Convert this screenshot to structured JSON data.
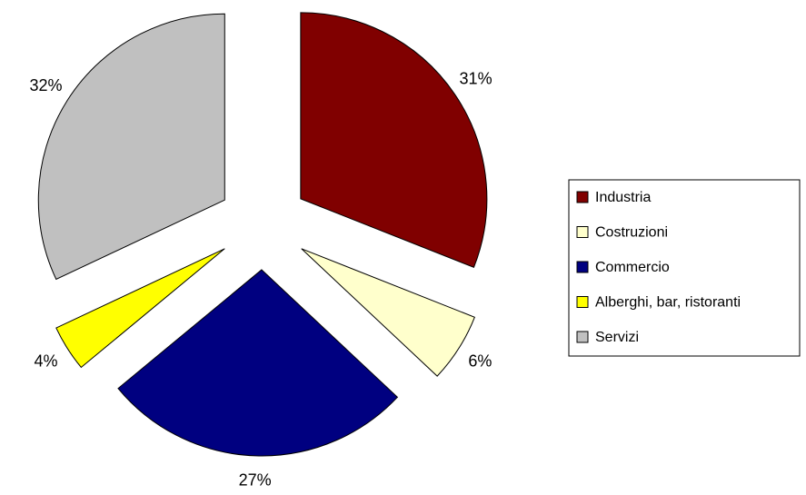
{
  "chart_data": {
    "type": "pie",
    "categories": [
      "Industria",
      "Costruzioni",
      "Commercio",
      "Alberghi, bar, ristoranti",
      "Servizi"
    ],
    "values": [
      31,
      6,
      27,
      4,
      32
    ],
    "value_labels": [
      "31%",
      "6%",
      "27%",
      "4%",
      "32%"
    ],
    "colors": [
      "#800000",
      "#FFFFCC",
      "#000080",
      "#FFFF00",
      "#C0C0C0"
    ],
    "legend": "right"
  }
}
